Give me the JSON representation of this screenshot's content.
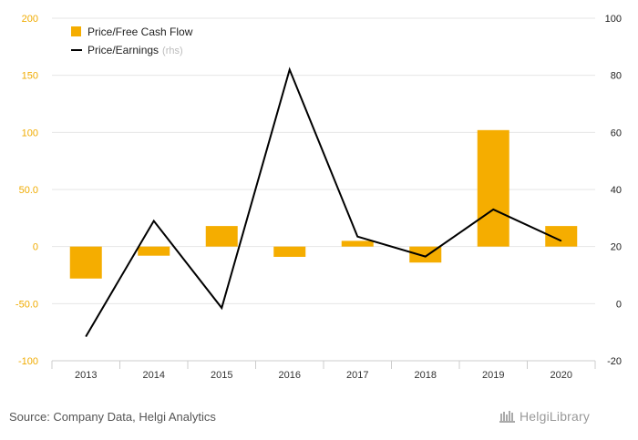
{
  "chart_data": {
    "type": "bar+line",
    "categories": [
      "2013",
      "2014",
      "2015",
      "2016",
      "2017",
      "2018",
      "2019",
      "2020"
    ],
    "series": [
      {
        "name": "Price/Free Cash Flow",
        "type": "bar",
        "axis": "left",
        "color": "#f5ad00",
        "values": [
          -28,
          -8,
          18,
          -9,
          5,
          -14,
          102,
          18
        ]
      },
      {
        "name": "Price/Earnings",
        "legend_note": "(rhs)",
        "type": "line",
        "axis": "right",
        "color": "#000000",
        "values": [
          -11.5,
          29,
          -1.5,
          82,
          23.5,
          16.5,
          33,
          22
        ]
      }
    ],
    "y_left": {
      "ticks": [
        "200",
        "150",
        "100",
        "50.0",
        "0",
        "-50.0",
        "-100"
      ],
      "range": [
        -100,
        200
      ],
      "color": "#f0ab00"
    },
    "y_right": {
      "ticks": [
        "100",
        "80",
        "60",
        "40",
        "20",
        "0",
        "-20"
      ],
      "range": [
        -20,
        100
      ]
    },
    "grid": true,
    "legend_position": "top-left"
  },
  "footer": {
    "source": "Source: Company Data, Helgi Analytics",
    "logo": "HelgiLibrary"
  }
}
